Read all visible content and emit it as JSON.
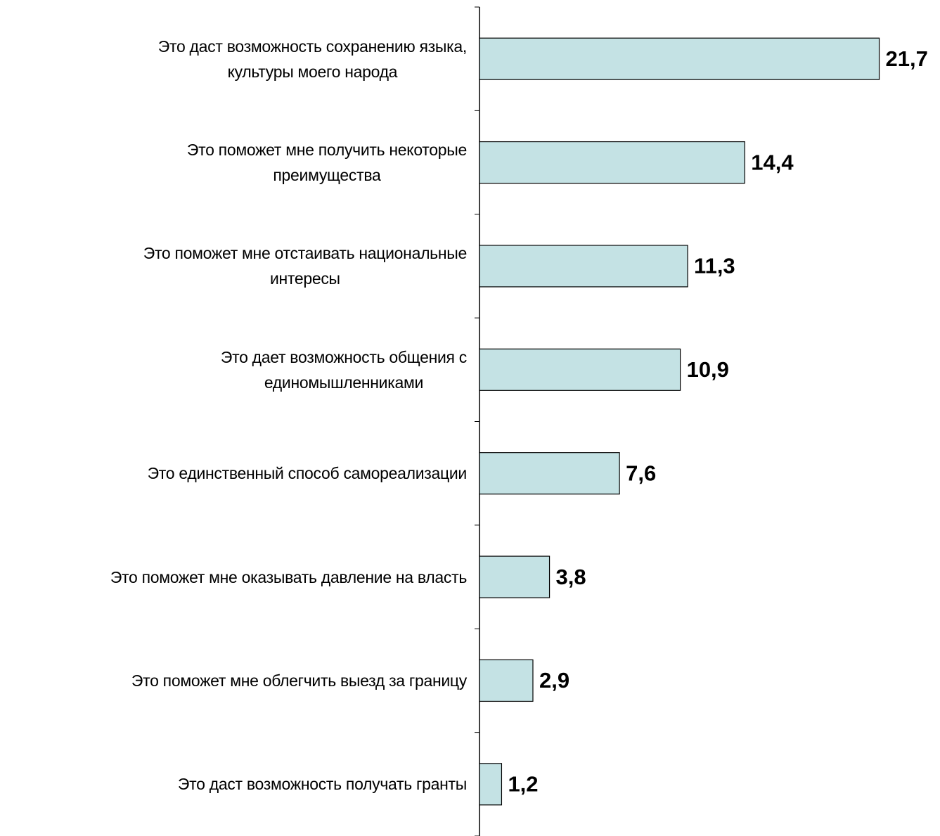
{
  "chart_data": {
    "type": "barh",
    "categories": [
      "Это даст возможность сохранению языка,\nкультуры моего народа",
      "Это поможет мне получить некоторые\nпреимущества",
      "Это поможет мне отстаивать национальные\nинтересы",
      "Это дает возможность общения с\nединомышленниками",
      "Это единственный способ самореализации",
      "Это поможет мне оказывать давление на власть",
      "Это поможет мне облегчить выезд за границу",
      "Это даст возможность получать гранты"
    ],
    "values": [
      21.7,
      14.4,
      11.3,
      10.9,
      7.6,
      3.8,
      2.9,
      1.2
    ],
    "value_labels": [
      "21,7",
      "14,4",
      "11,3",
      "10,9",
      "7,6",
      "3,8",
      "2,9",
      "1,2"
    ],
    "color": "#c4e2e4",
    "xlim": [
      0,
      25
    ]
  }
}
